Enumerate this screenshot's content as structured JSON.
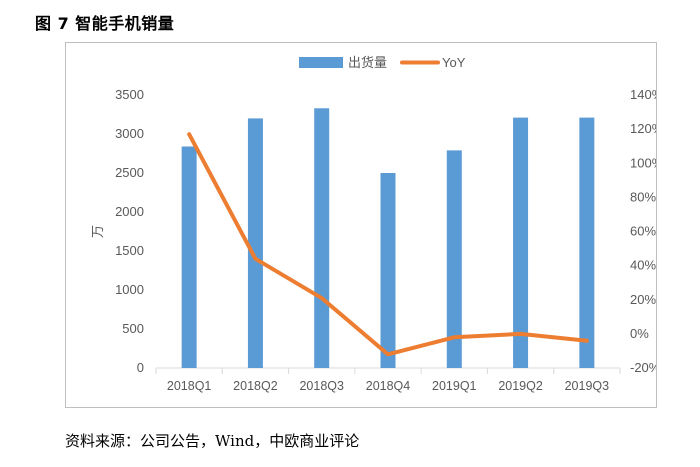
{
  "figure_title": "图 7 智能手机销量",
  "source": "资料来源：公司公告，Wind，中欧商业评论",
  "colors": {
    "bars": "#5b9bd5",
    "line": "#ed7d31",
    "axis": "#d9d9d9",
    "text": "#595959"
  },
  "chart_data": {
    "type": "bar",
    "categories": [
      "2018Q1",
      "2018Q2",
      "2018Q3",
      "2018Q4",
      "2019Q1",
      "2019Q2",
      "2019Q3"
    ],
    "series": [
      {
        "name": "出货量",
        "type": "bar",
        "axis": "left",
        "values": [
          2840,
          3200,
          3330,
          2500,
          2790,
          3210,
          3210
        ]
      },
      {
        "name": "YoY",
        "type": "line",
        "axis": "right",
        "values": [
          1.17,
          0.44,
          0.21,
          -0.12,
          -0.02,
          0.0,
          -0.04
        ]
      }
    ],
    "ylabel": "万",
    "ylim": [
      0,
      3500
    ],
    "yticks": [
      "0",
      "500",
      "1000",
      "1500",
      "2000",
      "2500",
      "3000",
      "3500"
    ],
    "y2lim": [
      -0.2,
      1.4
    ],
    "y2ticks": [
      "-20%",
      "0%",
      "20%",
      "40%",
      "60%",
      "80%",
      "100%",
      "120%",
      "140%"
    ],
    "legend_position": "top",
    "grid": false
  }
}
